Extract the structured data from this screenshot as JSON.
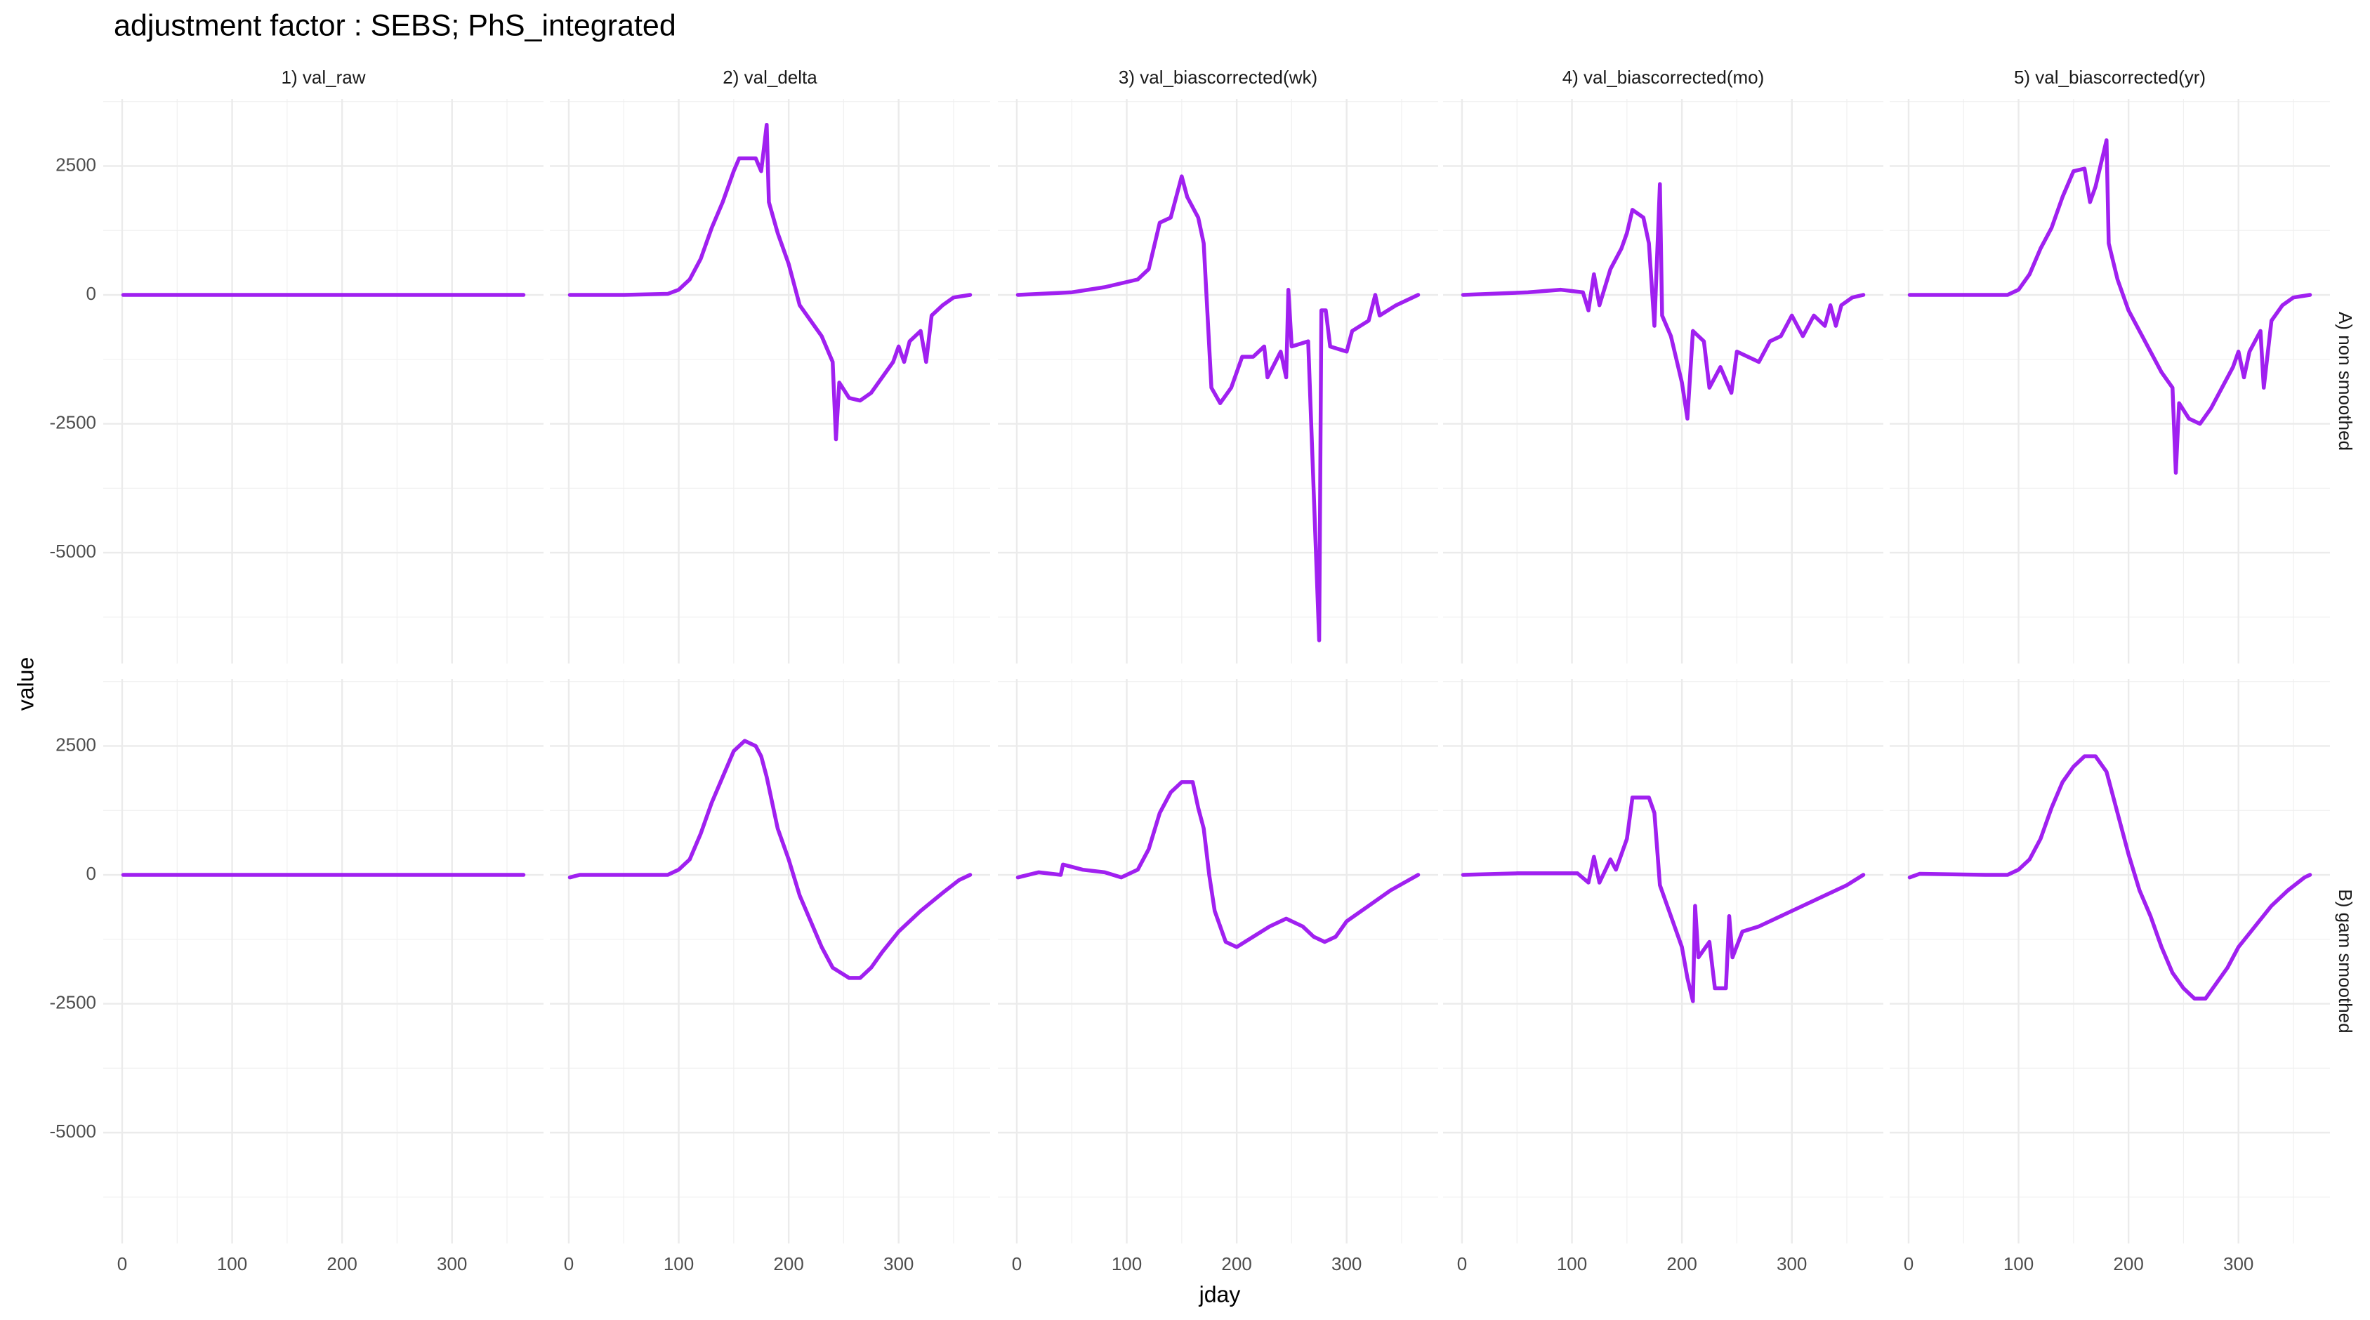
{
  "chart_data": {
    "type": "line",
    "title": "adjustment factor : SEBS; PhS_integrated",
    "x_label": "jday",
    "y_label": "value",
    "columns": [
      "1) val_raw",
      "2) val_delta",
      "3) val_biascorrected(wk)",
      "4) val_biascorrected(mo)",
      "5) val_biascorrected(yr)"
    ],
    "rows": [
      "A) non smoothed",
      "B) gam smoothed"
    ],
    "color": "#A020F0",
    "grid": true,
    "xlim": [
      -17.2,
      383.2
    ],
    "xticks": [
      0,
      100,
      200,
      300
    ],
    "ylim": [
      -7150,
      3800
    ],
    "yticks": [
      -5000,
      -2500,
      0,
      2500
    ],
    "panels": [
      {
        "x": [
          1,
          100,
          200,
          300,
          365
        ],
        "values": [
          0,
          0,
          0,
          0,
          0
        ]
      },
      {
        "x": [
          1,
          50,
          90,
          100,
          110,
          120,
          130,
          140,
          150,
          155,
          170,
          175,
          180,
          182,
          190,
          200,
          210,
          220,
          230,
          240,
          243,
          246,
          255,
          265,
          275,
          285,
          295,
          300,
          305,
          310,
          320,
          325,
          330,
          340,
          350,
          365
        ],
        "values": [
          0,
          0,
          20,
          100,
          300,
          700,
          1300,
          1800,
          2400,
          2650,
          2650,
          2400,
          3300,
          1800,
          1200,
          600,
          -200,
          -500,
          -800,
          -1300,
          -2800,
          -1700,
          -2000,
          -2050,
          -1900,
          -1600,
          -1300,
          -1000,
          -1300,
          -900,
          -700,
          -1300,
          -400,
          -200,
          -50,
          0
        ]
      },
      {
        "x": [
          1,
          50,
          80,
          110,
          120,
          130,
          140,
          150,
          155,
          165,
          170,
          177,
          185,
          195,
          200,
          205,
          215,
          225,
          228,
          240,
          245,
          247,
          250,
          265,
          275,
          277,
          281,
          285,
          300,
          305,
          320,
          326,
          330,
          345,
          365
        ],
        "values": [
          0,
          50,
          150,
          300,
          500,
          1400,
          1500,
          2300,
          1900,
          1500,
          1000,
          -1800,
          -2100,
          -1800,
          -1500,
          -1200,
          -1200,
          -1000,
          -1600,
          -1100,
          -1600,
          100,
          -1000,
          -900,
          -6700,
          -300,
          -300,
          -1000,
          -1100,
          -700,
          -500,
          0,
          -400,
          -200,
          0
        ]
      },
      {
        "x": [
          1,
          60,
          90,
          110,
          115,
          120,
          125,
          135,
          145,
          150,
          155,
          165,
          170,
          175,
          180,
          182,
          190,
          200,
          205,
          210,
          220,
          225,
          235,
          245,
          250,
          260,
          270,
          280,
          290,
          300,
          310,
          320,
          330,
          335,
          340,
          345,
          355,
          365
        ],
        "values": [
          0,
          50,
          100,
          50,
          -300,
          400,
          -200,
          500,
          900,
          1200,
          1650,
          1500,
          1000,
          -600,
          2150,
          -400,
          -800,
          -1700,
          -2400,
          -700,
          -900,
          -1800,
          -1400,
          -1900,
          -1100,
          -1200,
          -1300,
          -900,
          -800,
          -400,
          -800,
          -400,
          -600,
          -200,
          -600,
          -200,
          -50,
          0
        ]
      },
      {
        "x": [
          1,
          90,
          100,
          110,
          120,
          130,
          140,
          150,
          160,
          165,
          170,
          180,
          182,
          190,
          200,
          210,
          220,
          230,
          240,
          243,
          246,
          255,
          265,
          275,
          285,
          295,
          300,
          305,
          310,
          320,
          323,
          330,
          340,
          350,
          365
        ],
        "values": [
          0,
          0,
          100,
          400,
          900,
          1300,
          1900,
          2400,
          2450,
          1800,
          2100,
          3000,
          1000,
          300,
          -300,
          -700,
          -1100,
          -1500,
          -1800,
          -3450,
          -2100,
          -2400,
          -2500,
          -2200,
          -1800,
          -1400,
          -1100,
          -1600,
          -1100,
          -700,
          -1800,
          -500,
          -200,
          -50,
          0
        ]
      },
      {
        "x": [
          1,
          100,
          200,
          300,
          365
        ],
        "values": [
          0,
          0,
          0,
          0,
          0
        ]
      },
      {
        "x": [
          1,
          10,
          90,
          100,
          110,
          120,
          130,
          140,
          150,
          160,
          170,
          175,
          180,
          185,
          190,
          200,
          210,
          220,
          230,
          240,
          255,
          265,
          275,
          285,
          300,
          320,
          340,
          355,
          365
        ],
        "values": [
          -50,
          0,
          0,
          100,
          300,
          800,
          1400,
          1900,
          2400,
          2600,
          2500,
          2300,
          1900,
          1400,
          900,
          300,
          -400,
          -900,
          -1400,
          -1800,
          -2000,
          -2000,
          -1800,
          -1500,
          -1100,
          -700,
          -350,
          -100,
          0
        ]
      },
      {
        "x": [
          1,
          20,
          40,
          42,
          60,
          80,
          95,
          100,
          110,
          120,
          130,
          140,
          150,
          160,
          165,
          170,
          175,
          180,
          190,
          200,
          215,
          230,
          245,
          260,
          270,
          280,
          290,
          300,
          320,
          340,
          365
        ],
        "values": [
          -50,
          50,
          0,
          200,
          100,
          50,
          -50,
          0,
          100,
          500,
          1200,
          1600,
          1800,
          1800,
          1300,
          900,
          0,
          -700,
          -1300,
          -1400,
          -1200,
          -1000,
          -850,
          -1000,
          -1200,
          -1300,
          -1200,
          -900,
          -600,
          -300,
          0
        ]
      },
      {
        "x": [
          1,
          50,
          105,
          115,
          120,
          125,
          135,
          140,
          150,
          155,
          170,
          175,
          180,
          190,
          200,
          205,
          210,
          212,
          215,
          225,
          230,
          240,
          243,
          246,
          255,
          270,
          290,
          310,
          330,
          350,
          365
        ],
        "values": [
          0,
          30,
          30,
          -150,
          350,
          -150,
          300,
          100,
          700,
          1500,
          1500,
          1200,
          -200,
          -800,
          -1400,
          -2000,
          -2450,
          -600,
          -1600,
          -1300,
          -2200,
          -2200,
          -800,
          -1600,
          -1100,
          -1000,
          -800,
          -600,
          -400,
          -200,
          0
        ]
      },
      {
        "x": [
          1,
          10,
          70,
          90,
          100,
          110,
          120,
          130,
          140,
          150,
          160,
          170,
          180,
          190,
          200,
          210,
          220,
          230,
          240,
          250,
          260,
          270,
          280,
          290,
          300,
          315,
          330,
          345,
          360,
          365
        ],
        "values": [
          -50,
          20,
          0,
          0,
          100,
          300,
          700,
          1300,
          1800,
          2100,
          2300,
          2300,
          2000,
          1200,
          400,
          -300,
          -800,
          -1400,
          -1900,
          -2200,
          -2400,
          -2400,
          -2100,
          -1800,
          -1400,
          -1000,
          -600,
          -300,
          -50,
          0
        ]
      }
    ]
  }
}
